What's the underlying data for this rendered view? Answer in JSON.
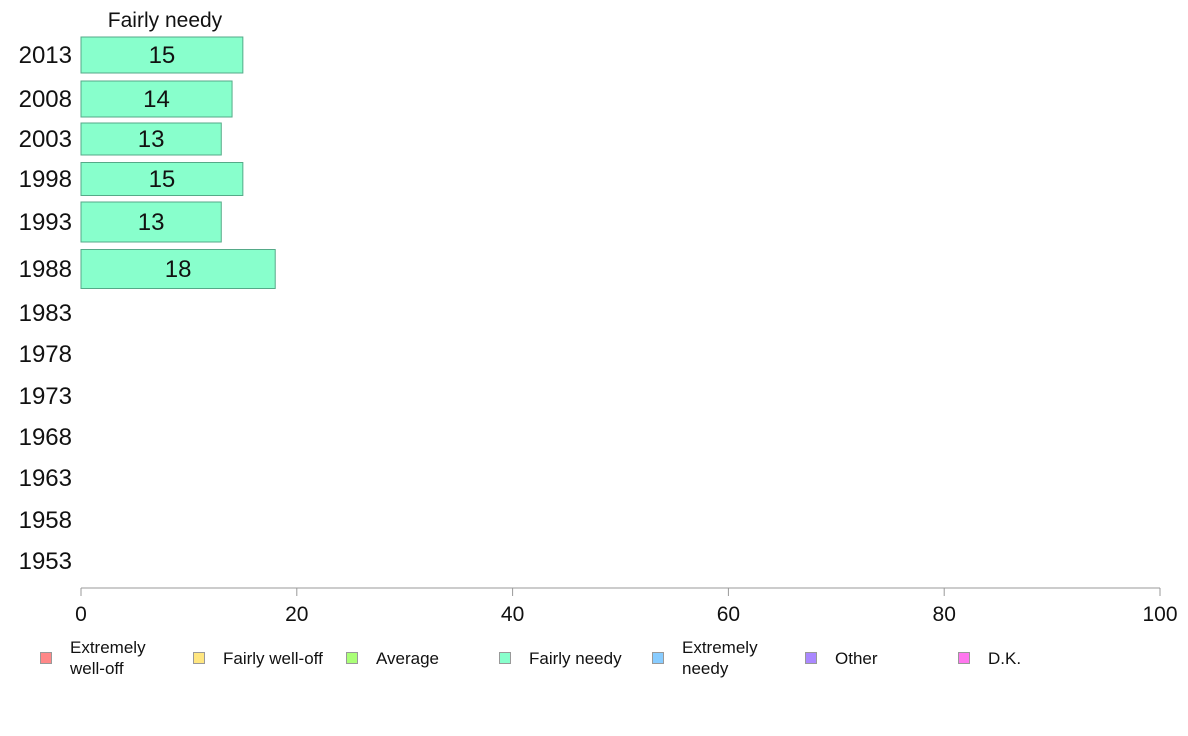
{
  "chart_data": {
    "type": "bar",
    "orientation": "horizontal",
    "title": "Fairly needy",
    "categories": [
      "2013",
      "2008",
      "2003",
      "1998",
      "1993",
      "1988",
      "1983",
      "1978",
      "1973",
      "1968",
      "1963",
      "1958",
      "1953"
    ],
    "series": [
      {
        "name": "Fairly needy",
        "values": [
          15,
          14,
          13,
          15,
          13,
          18,
          null,
          null,
          null,
          null,
          null,
          null,
          null
        ]
      }
    ],
    "xlim": [
      0,
      100
    ],
    "xticks": [
      "0",
      "20",
      "40",
      "60",
      "80",
      "100"
    ],
    "bar_color": "#88ffcc",
    "bar_edge_color": "#55aa88"
  },
  "legend": {
    "placement": "bottom",
    "items": [
      {
        "label": "Extremely\nwell-off",
        "color": "#ff8888"
      },
      {
        "label": "Fairly well-off",
        "color": "#ffe680"
      },
      {
        "label": "Average",
        "color": "#aaff77"
      },
      {
        "label": "Fairly needy",
        "color": "#88ffcc"
      },
      {
        "label": "Extremely\nneedy",
        "color": "#88ccff"
      },
      {
        "label": "Other",
        "color": "#aa88ff"
      },
      {
        "label": "D.K.",
        "color": "#ff77ee"
      }
    ]
  }
}
